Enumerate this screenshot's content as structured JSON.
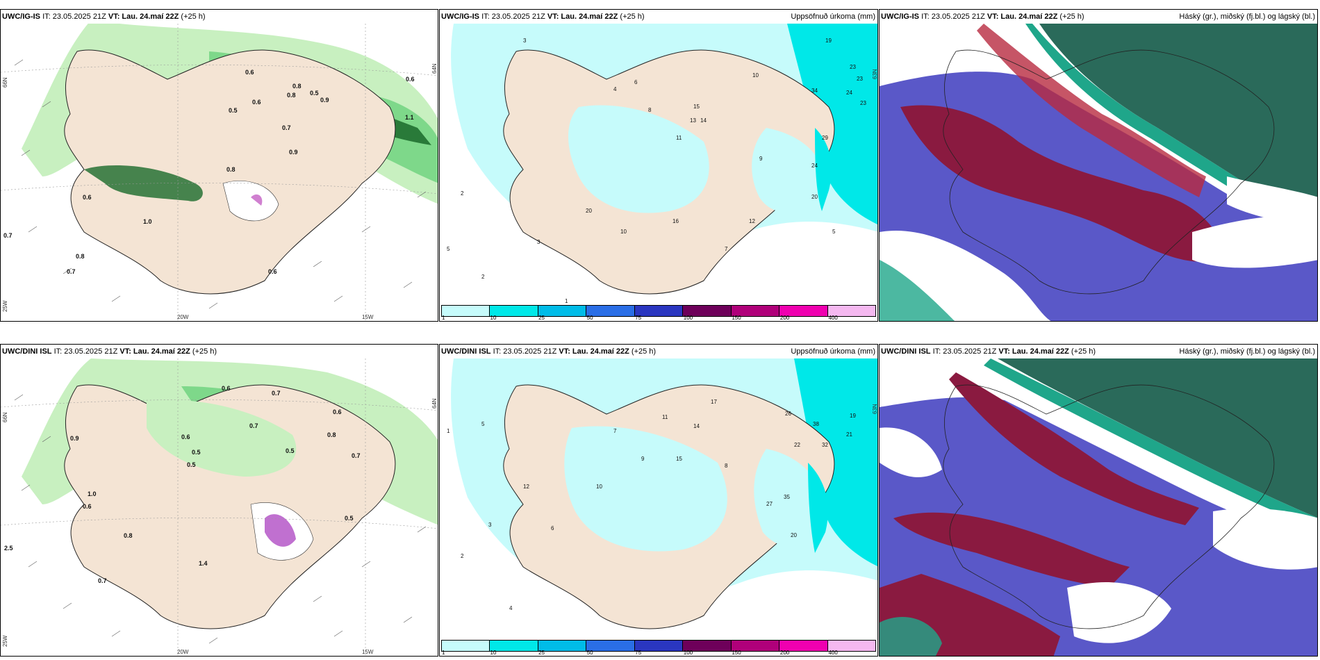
{
  "panels": {
    "top_left": {
      "model": "UWC/IG-IS",
      "it": "IT: 23.05.2025 21Z",
      "vt_label": "VT:",
      "vt": "Lau. 24.maí 22Z",
      "lead": "(+25 h)",
      "title": "",
      "labels": [
        "0.6",
        "0.8",
        "0.8",
        "0.5",
        "0.9",
        "0.6",
        "0.6",
        "0.9",
        "1.1",
        "0.5",
        "0.7",
        "0.8",
        "0.7",
        "0.6",
        "1.0",
        "0.7",
        "0.8",
        "0.6"
      ]
    },
    "top_mid": {
      "model": "UWC/IG-IS",
      "it": "IT: 23.05.2025 21Z",
      "vt_label": "VT:",
      "vt": "Lau. 24.maí 22Z",
      "lead": "(+25 h)",
      "title": "Uppsöfnuð úrkoma (mm)",
      "labels": [
        "19",
        "23",
        "23",
        "24",
        "23",
        "34",
        "29",
        "24",
        "20",
        "13",
        "15",
        "16",
        "12",
        "5",
        "9",
        "3",
        "2",
        "1",
        "20",
        "10",
        "7",
        "5",
        "2",
        "3",
        "4",
        "6",
        "8",
        "11",
        "14",
        "10"
      ]
    },
    "top_right": {
      "model": "UWC/IG-IS",
      "it": "IT: 23.05.2025 21Z",
      "vt_label": "VT:",
      "vt": "Lau. 24.maí 22Z",
      "lead": "(+25 h)",
      "title": "Háský (gr.), miðský (fj.bl.) og lágský (bl.)"
    },
    "bot_left": {
      "model": "UWC/DINI ISL",
      "it": "IT: 23.05.2025 21Z",
      "vt_label": "VT:",
      "vt": "Lau. 24.maí 22Z",
      "lead": "(+25 h)",
      "title": "",
      "labels": [
        "0.6",
        "0.7",
        "0.8",
        "0.5",
        "0.6",
        "0.5",
        "0.7",
        "1.0",
        "0.6",
        "0.8",
        "1.4",
        "2.5",
        "0.7",
        "0.5",
        "0.6",
        "0.9",
        "0.5",
        "0.7"
      ]
    },
    "bot_mid": {
      "model": "UWC/DINI ISL",
      "it": "IT: 23.05.2025 21Z",
      "vt_label": "VT:",
      "vt": "Lau. 24.maí 22Z",
      "lead": "(+25 h)",
      "title": "Uppsöfnuð úrkoma (mm)",
      "labels": [
        "19",
        "21",
        "26",
        "38",
        "32",
        "22",
        "35",
        "27",
        "20",
        "17",
        "14",
        "12",
        "10",
        "5",
        "3",
        "2",
        "1",
        "4",
        "7",
        "9",
        "11",
        "15",
        "8",
        "6"
      ]
    },
    "bot_right": {
      "model": "UWC/DINI ISL",
      "it": "IT: 23.05.2025 21Z",
      "vt_label": "VT:",
      "vt": "Lau. 24.maí 22Z",
      "lead": "(+25 h)",
      "title": "Háský (gr.), miðský (fj.bl.) og lágský (bl.)"
    }
  },
  "axes": {
    "lat66": "66N",
    "lat64": "64N",
    "lat63": "63N",
    "lon25": "25W",
    "lon20": "20W",
    "lon15": "15W"
  },
  "legend": {
    "ticks": [
      "1",
      "10",
      "25",
      "50",
      "75",
      "100",
      "150",
      "200",
      "400"
    ],
    "colors": [
      "#c6fbfb",
      "#00e8e8",
      "#00bce8",
      "#2a6ee6",
      "#2a36c0",
      "#6e005a",
      "#b0007a",
      "#f000b0",
      "#f5b8f0"
    ]
  },
  "palette": {
    "land": "#f4e4d4",
    "green_light": "#c8f0c0",
    "green_mid": "#7ed88a",
    "green_dark": "#1a6a2a",
    "cyan_light": "#c6fbfb",
    "cyan": "#00e8e8",
    "cloud_high": "#2a6a5a",
    "cloud_mid": "#5a58c8",
    "cloud_low": "#8a1a40"
  }
}
